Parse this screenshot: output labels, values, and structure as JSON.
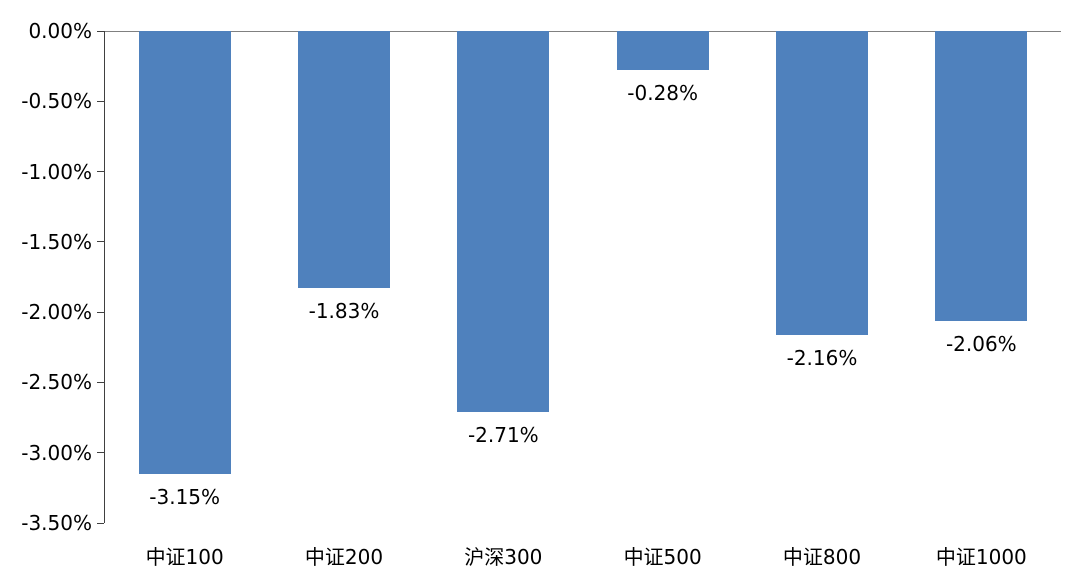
{
  "chart_data": {
    "type": "bar",
    "title": "",
    "xlabel": "",
    "ylabel": "",
    "categories": [
      "中证100",
      "中证200",
      "沪深300",
      "中证500",
      "中证800",
      "中证1000"
    ],
    "values": [
      -3.15,
      -1.83,
      -2.71,
      -0.28,
      -2.16,
      -2.06
    ],
    "value_labels": [
      "-3.15%",
      "-1.83%",
      "-2.71%",
      "-0.28%",
      "-2.16%",
      "-2.06%"
    ],
    "ylim": [
      -3.5,
      0
    ],
    "y_tick_values": [
      0,
      -0.5,
      -1,
      -1.5,
      -2,
      -2.5,
      -3,
      -3.5
    ],
    "y_tick_labels": [
      "0.00%",
      "-0.50%",
      "-1.00%",
      "-1.50%",
      "-2.00%",
      "-2.50%",
      "-3.00%",
      "-3.50%"
    ],
    "grid": false,
    "legend": "none",
    "bar_color": "#4F81BD",
    "axis_color": "#404040",
    "zero_line_color": "#808080",
    "label_color": "#000000"
  }
}
